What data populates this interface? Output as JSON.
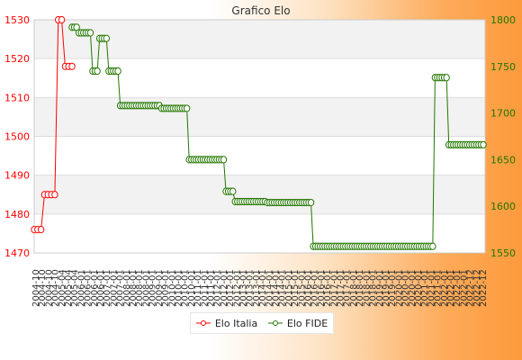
{
  "chart_data": {
    "type": "line",
    "title": "Grafico Elo",
    "grid": true,
    "legend_position": "bottom",
    "y_left": {
      "min": 1470,
      "max": 1530,
      "ticks": [
        "1470",
        "1480",
        "1490",
        "1500",
        "1510",
        "1520",
        "1530"
      ],
      "color": "#ff0000"
    },
    "y_right": {
      "min": 1550,
      "max": 1800,
      "ticks": [
        "1550",
        "1600",
        "1650",
        "1700",
        "1750",
        "1800"
      ],
      "color": "#227700"
    },
    "x_labels_sample": [
      "2004-10",
      "2005-04",
      "2006-01",
      "2007-01",
      "2008-01",
      "2009-01",
      "2010-01",
      "2011-01",
      "2012-01",
      "2013-01",
      "2014-01",
      "2015-01",
      "2016-01",
      "2017-01",
      "2018-01",
      "2019-01",
      "2020-01",
      "2021-01",
      "2022-01",
      "2022-12"
    ],
    "series": [
      {
        "name": "Elo Italia",
        "axis": "left",
        "color": "#ff0000",
        "values": [
          1476,
          1476,
          1476,
          1485,
          1485,
          1485,
          1485,
          1530,
          1530,
          1518,
          1518,
          1518
        ]
      },
      {
        "name": "Elo FIDE",
        "axis": "right",
        "color": "#227700",
        "segments": [
          {
            "count": 3,
            "value": 1792
          },
          {
            "count": 6,
            "value": 1786
          },
          {
            "count": 3,
            "value": 1745
          },
          {
            "count": 4,
            "value": 1780
          },
          {
            "count": 5,
            "value": 1745
          },
          {
            "count": 18,
            "value": 1708
          },
          {
            "count": 12,
            "value": 1705
          },
          {
            "count": 16,
            "value": 1650
          },
          {
            "count": 4,
            "value": 1616
          },
          {
            "count": 14,
            "value": 1605
          },
          {
            "count": 20,
            "value": 1604
          },
          {
            "count": 53,
            "value": 1557
          },
          {
            "count": 6,
            "value": 1738
          },
          {
            "count": 16,
            "value": 1666
          }
        ]
      }
    ]
  }
}
